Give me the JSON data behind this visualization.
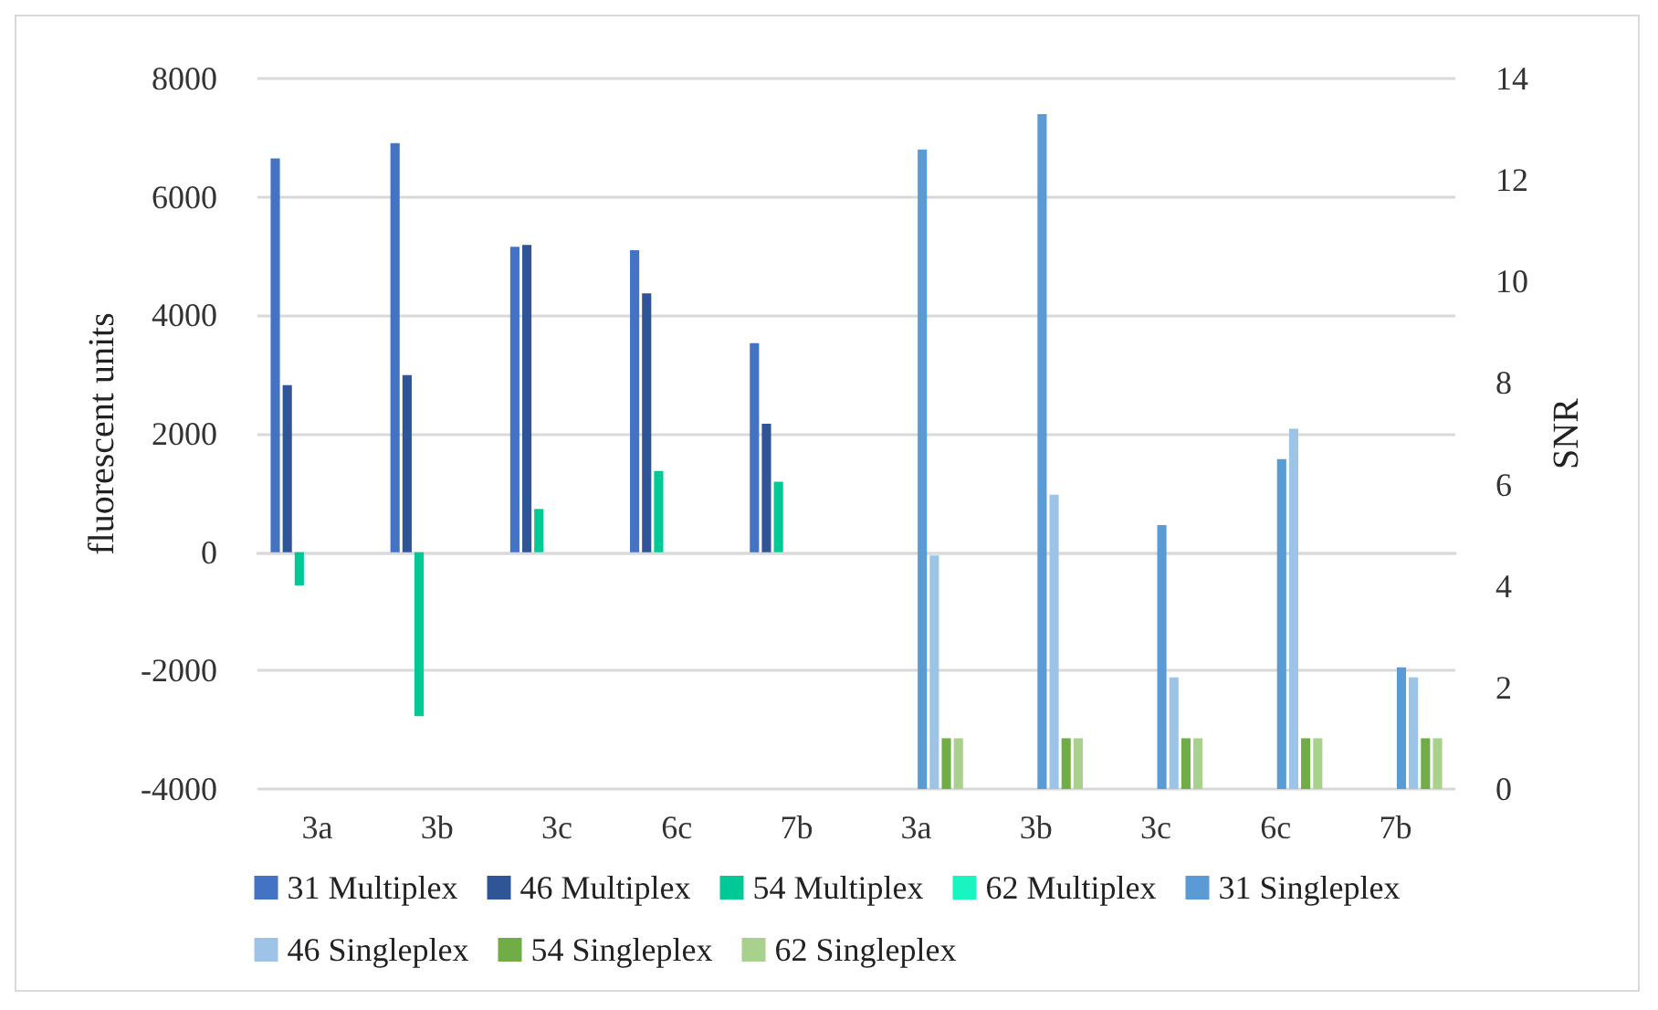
{
  "chart_data": {
    "type": "bar",
    "ylabel": "fluorescent units",
    "y2label": "SNR",
    "categories": [
      "3a",
      "3b",
      "3c",
      "6c",
      "7b",
      "3a",
      "3b",
      "3c",
      "6c",
      "7b"
    ],
    "series": [
      {
        "name": "31 Multiplex",
        "color": "#4472c4",
        "values": [
          6650,
          6910,
          5160,
          5100,
          3530,
          null,
          null,
          null,
          null,
          null
        ]
      },
      {
        "name": "46 Multiplex",
        "color": "#2f5597",
        "values": [
          2820,
          2990,
          5190,
          4370,
          2170,
          null,
          null,
          null,
          null,
          null
        ]
      },
      {
        "name": "54 Multiplex",
        "color": "#00c996",
        "values": [
          -560,
          -2770,
          730,
          1370,
          1190,
          null,
          null,
          null,
          null,
          null
        ]
      },
      {
        "name": "62 Multiplex",
        "color": "#19f5c1",
        "values": [
          null,
          null,
          null,
          null,
          null,
          null,
          null,
          null,
          null,
          null
        ]
      },
      {
        "name": "31 Singleplex",
        "color": "#5b9bd5",
        "axis": "y2",
        "values": [
          null,
          null,
          null,
          null,
          null,
          12.6,
          13.3,
          5.2,
          6.5,
          2.4
        ]
      },
      {
        "name": "46 Singleplex",
        "color": "#9dc3e6",
        "axis": "y2",
        "values": [
          null,
          null,
          null,
          null,
          null,
          4.6,
          5.8,
          2.2,
          7.1,
          2.2
        ]
      },
      {
        "name": "54 Singleplex",
        "color": "#70ad47",
        "axis": "y2",
        "values": [
          null,
          null,
          null,
          null,
          null,
          1.0,
          1.0,
          1.0,
          1.0,
          1.0
        ]
      },
      {
        "name": "62 Singleplex",
        "color": "#a9d18e",
        "axis": "y2",
        "values": [
          null,
          null,
          null,
          null,
          null,
          1.0,
          1.0,
          1.0,
          1.0,
          1.0
        ]
      }
    ],
    "ylim": [
      -4000,
      8000
    ],
    "yticks": [
      -4000,
      -2000,
      0,
      2000,
      4000,
      6000,
      8000
    ],
    "y2lim": [
      0,
      14
    ],
    "y2ticks": [
      0,
      2,
      4,
      6,
      8,
      10,
      12,
      14
    ],
    "grid": "y",
    "legend": "bottom"
  }
}
